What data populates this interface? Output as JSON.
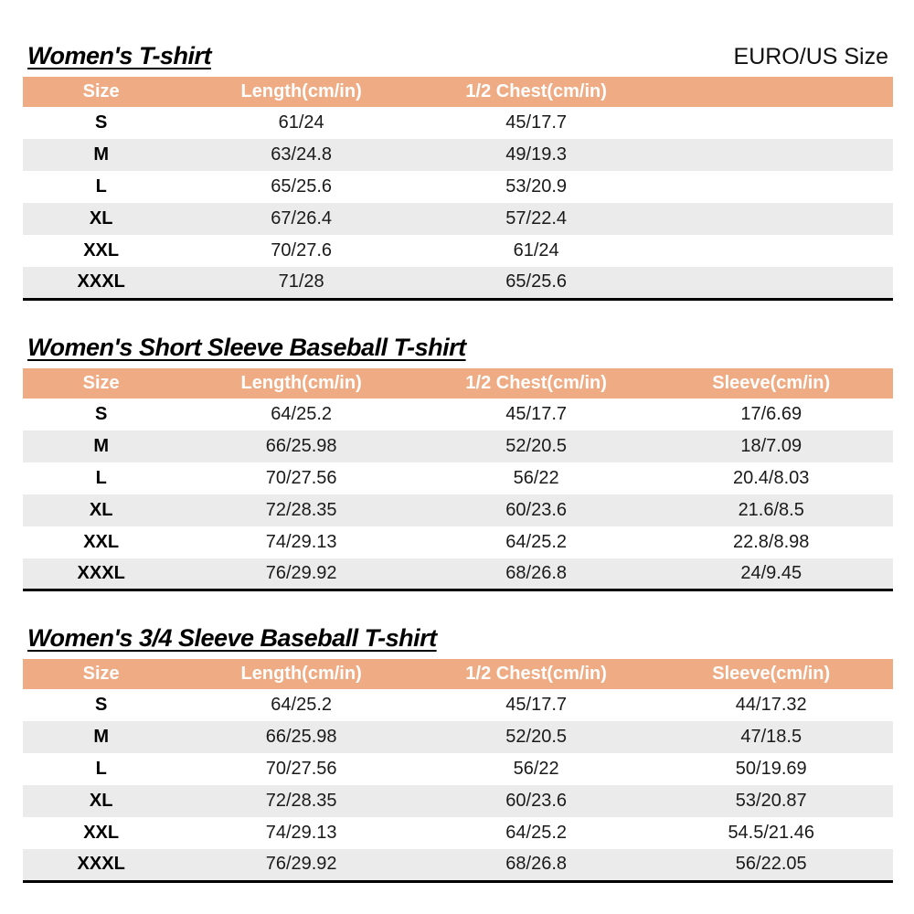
{
  "page": {
    "size_standard": "EURO/US Size"
  },
  "colors": {
    "header_bg": "#EFAC84",
    "row_alt_bg": "#EBEBEB",
    "table_border": "#000000"
  },
  "tables": [
    {
      "title": "Women's T-shirt",
      "columns": [
        "Size",
        "Length(cm/in)",
        "1/2 Chest(cm/in)"
      ],
      "rows": [
        [
          "S",
          "61/24",
          "45/17.7"
        ],
        [
          "M",
          "63/24.8",
          "49/19.3"
        ],
        [
          "L",
          "65/25.6",
          "53/20.9"
        ],
        [
          "XL",
          "67/26.4",
          "57/22.4"
        ],
        [
          "XXL",
          "70/27.6",
          "61/24"
        ],
        [
          "XXXL",
          "71/28",
          "65/25.6"
        ]
      ]
    },
    {
      "title": "Women's Short Sleeve Baseball T-shirt",
      "columns": [
        "Size",
        "Length(cm/in)",
        "1/2 Chest(cm/in)",
        "Sleeve(cm/in)"
      ],
      "rows": [
        [
          "S",
          "64/25.2",
          "45/17.7",
          "17/6.69"
        ],
        [
          "M",
          "66/25.98",
          "52/20.5",
          "18/7.09"
        ],
        [
          "L",
          "70/27.56",
          "56/22",
          "20.4/8.03"
        ],
        [
          "XL",
          "72/28.35",
          "60/23.6",
          "21.6/8.5"
        ],
        [
          "XXL",
          "74/29.13",
          "64/25.2",
          "22.8/8.98"
        ],
        [
          "XXXL",
          "76/29.92",
          "68/26.8",
          "24/9.45"
        ]
      ]
    },
    {
      "title": "Women's 3/4 Sleeve Baseball T-shirt",
      "columns": [
        "Size",
        "Length(cm/in)",
        "1/2 Chest(cm/in)",
        "Sleeve(cm/in)"
      ],
      "rows": [
        [
          "S",
          "64/25.2",
          "45/17.7",
          "44/17.32"
        ],
        [
          "M",
          "66/25.98",
          "52/20.5",
          "47/18.5"
        ],
        [
          "L",
          "70/27.56",
          "56/22",
          "50/19.69"
        ],
        [
          "XL",
          "72/28.35",
          "60/23.6",
          "53/20.87"
        ],
        [
          "XXL",
          "74/29.13",
          "64/25.2",
          "54.5/21.46"
        ],
        [
          "XXXL",
          "76/29.92",
          "68/26.8",
          "56/22.05"
        ]
      ]
    }
  ]
}
